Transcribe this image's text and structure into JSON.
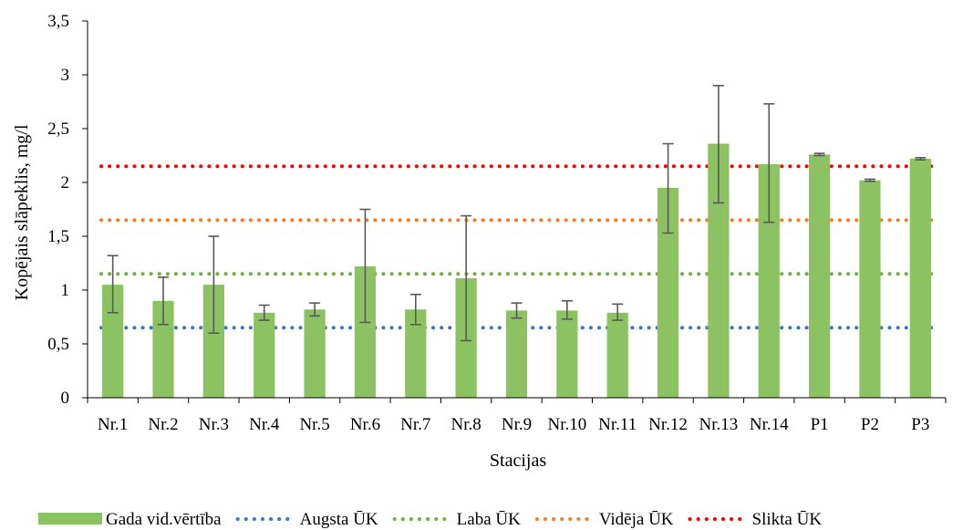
{
  "chart_data": {
    "type": "bar",
    "xlabel": "Stacijas",
    "ylabel": "Kopējais slāpeklis, mg/l",
    "ylim": [
      0,
      3.5
    ],
    "yticks": [
      "0",
      "0,5",
      "1",
      "1,5",
      "2",
      "2,5",
      "3",
      "3,5"
    ],
    "ytick_values": [
      0,
      0.5,
      1,
      1.5,
      2,
      2.5,
      3,
      3.5
    ],
    "categories": [
      "Nr.1",
      "Nr.2",
      "Nr.3",
      "Nr.4",
      "Nr.5",
      "Nr.6",
      "Nr.7",
      "Nr.8",
      "Nr.9",
      "Nr.10",
      "Nr.11",
      "Nr.12",
      "Nr.13",
      "Nr.14",
      "P1",
      "P2",
      "P3"
    ],
    "series": [
      {
        "name": "Gada vid.vērtība",
        "color": "#8dc262",
        "values": [
          1.05,
          0.9,
          1.05,
          0.79,
          0.82,
          1.22,
          0.82,
          1.11,
          0.81,
          0.81,
          0.79,
          1.95,
          2.36,
          2.17,
          2.26,
          2.02,
          2.22
        ],
        "err_low": [
          0.79,
          0.68,
          0.6,
          0.72,
          0.76,
          0.7,
          0.68,
          0.53,
          0.74,
          0.73,
          0.72,
          1.53,
          1.81,
          1.63,
          2.25,
          2.01,
          2.21
        ],
        "err_high": [
          1.32,
          1.12,
          1.5,
          0.86,
          0.88,
          1.75,
          0.96,
          1.69,
          0.88,
          0.9,
          0.87,
          2.36,
          2.9,
          2.73,
          2.27,
          2.03,
          2.23
        ]
      }
    ],
    "reference_lines": [
      {
        "name": "Augsta ŪK",
        "value": 0.65,
        "color": "#4472c4"
      },
      {
        "name": "Laba ŪK",
        "value": 1.15,
        "color": "#70ad47"
      },
      {
        "name": "Vidēja ŪK",
        "value": 1.65,
        "color": "#ed7d31"
      },
      {
        "name": "Slikta ŪK",
        "value": 2.15,
        "color": "#ff0000"
      }
    ],
    "grid": false,
    "legend_position": "bottom"
  }
}
